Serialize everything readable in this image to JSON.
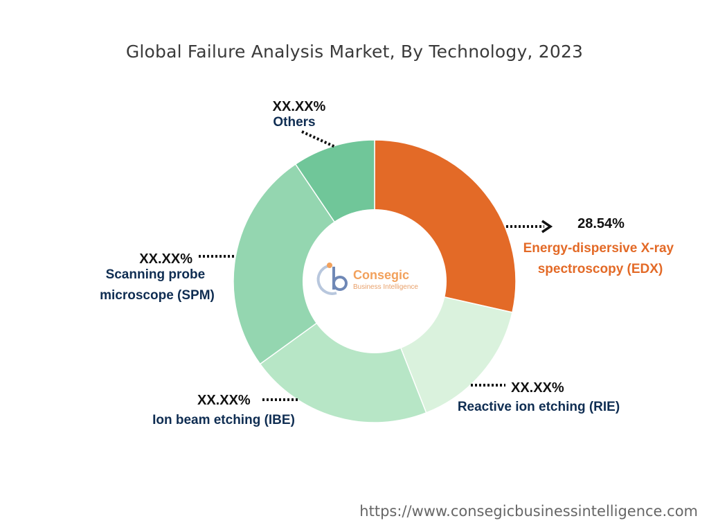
{
  "chart_data": {
    "type": "pie",
    "donut": true,
    "title": "Global Failure Analysis Market, By Technology, 2023",
    "categories": [
      "Energy-dispersive X-ray spectroscopy (EDX)",
      "Reactive ion etching (RIE)",
      "Ion beam etching (IBE)",
      "Scanning probe microscope (SPM)",
      "Others"
    ],
    "values": [
      28.54,
      15.5,
      21.0,
      25.5,
      9.46
    ],
    "value_labels": [
      "28.54%",
      "XX.XX%",
      "XX.XX%",
      "XX.XX%",
      "XX.XX%"
    ],
    "colors": [
      "#E36A27",
      "#DAF2DD",
      "#B7E6C6",
      "#94D6B0",
      "#70C699"
    ],
    "label_colors": [
      "#E36A27",
      "#0F2D52",
      "#0F2D52",
      "#0F2D52",
      "#0F2D52"
    ],
    "legend": "none"
  },
  "logo": {
    "name": "Consegic",
    "tagline": "Business Intelligence"
  },
  "footer": {
    "url": "https://www.consegicbusinessintelligence.com"
  }
}
